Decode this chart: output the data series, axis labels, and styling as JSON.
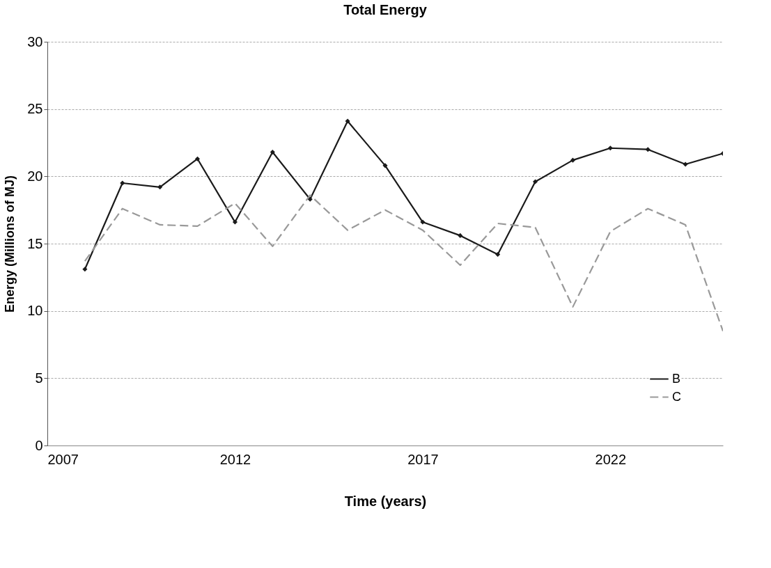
{
  "chart_data": {
    "type": "line",
    "title": "Total Energy",
    "xlabel": "Time (years)",
    "ylabel": "Energy (Millions of MJ)",
    "x": [
      2008,
      2009,
      2010,
      2011,
      2012,
      2013,
      2014,
      2015,
      2016,
      2017,
      2018,
      2019,
      2020,
      2021,
      2022,
      2023,
      2024,
      2025
    ],
    "series": [
      {
        "name": "B",
        "color": "#1a1a1a",
        "marker": "diamond",
        "line_style": "solid",
        "values": [
          13.1,
          19.5,
          19.2,
          21.3,
          16.6,
          21.8,
          18.3,
          24.1,
          20.8,
          16.6,
          15.6,
          14.2,
          19.6,
          21.2,
          22.1,
          22.0,
          20.9,
          21.7
        ]
      },
      {
        "name": "C",
        "color": "#999999",
        "marker": "none",
        "line_style": "dashed",
        "values": [
          13.7,
          17.6,
          16.4,
          16.3,
          18.0,
          14.8,
          18.6,
          16.0,
          17.5,
          16.0,
          13.4,
          16.5,
          16.2,
          10.3,
          15.9,
          17.6,
          16.4,
          8.5
        ]
      }
    ],
    "xlim": [
      2007,
      2025
    ],
    "xticks": [
      2007,
      2012,
      2017,
      2022
    ],
    "ylim": [
      0,
      30
    ],
    "yticks": [
      0,
      5,
      10,
      15,
      20,
      25,
      30
    ],
    "grid": "y",
    "legend": "bottom right"
  }
}
